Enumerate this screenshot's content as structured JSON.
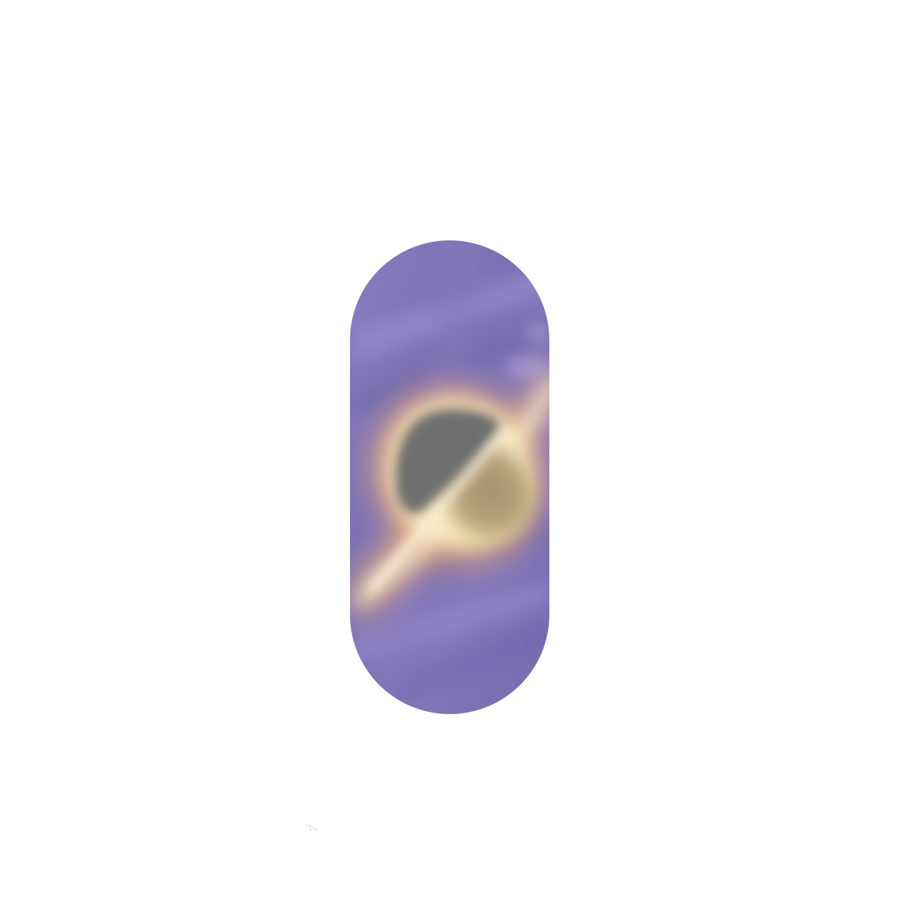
{
  "artwork": {
    "subject": "painted-nail-galaxy",
    "palette": {
      "background": "#ffffff",
      "nebula_purple": "#7d72b4",
      "nebula_light": "#a394d6",
      "nebula_dark": "#5e5a98",
      "glow_peach": "#f3b77e",
      "glow_cream": "#f6efc8",
      "core_gray": "#6f6f6f",
      "core_tan": "#a99572"
    }
  }
}
